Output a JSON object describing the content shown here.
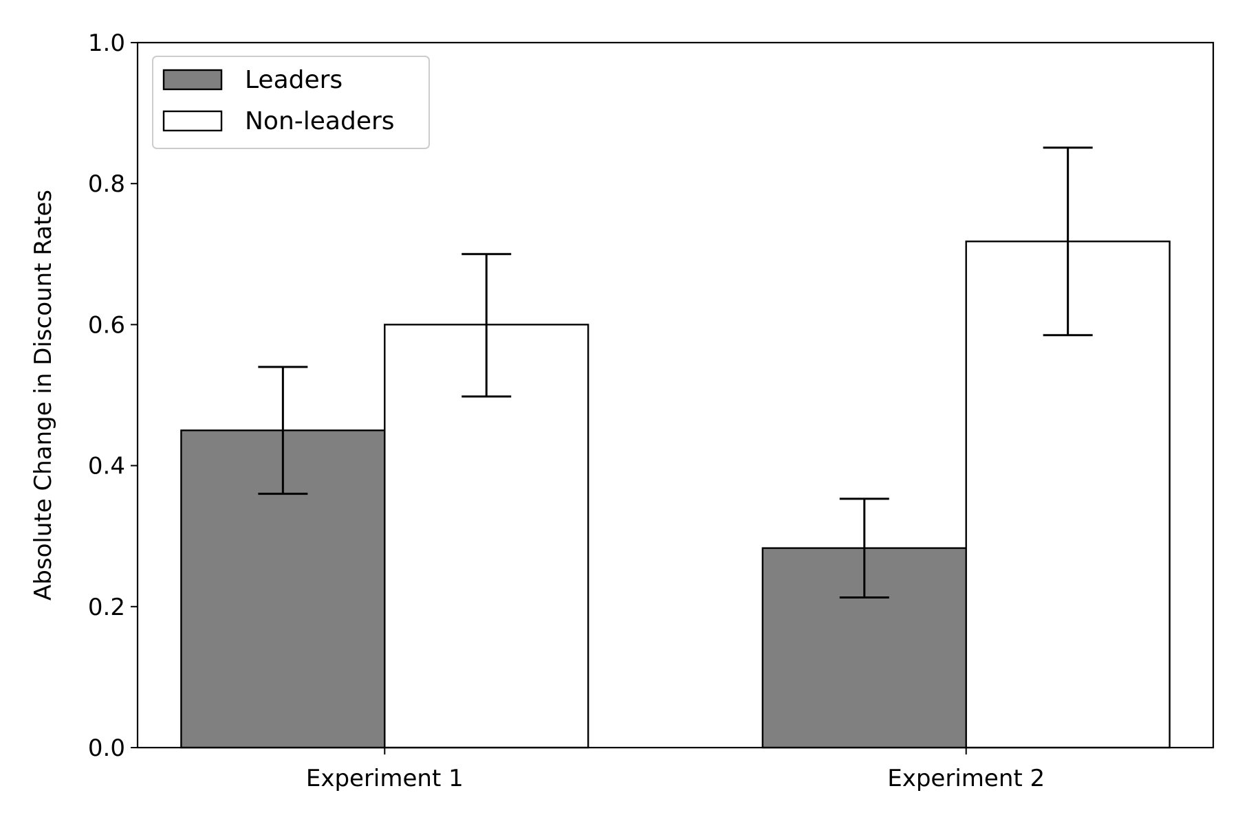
{
  "chart_data": {
    "type": "bar",
    "title": "",
    "xlabel": "",
    "ylabel": "Absolute Change in Discount Rates",
    "categories": [
      "Experiment 1",
      "Experiment 2"
    ],
    "ylim": [
      0.0,
      1.0
    ],
    "yticks": [
      "0.0",
      "0.2",
      "0.4",
      "0.6",
      "0.8",
      "1.0"
    ],
    "series": [
      {
        "name": "Leaders",
        "color": "#808080",
        "values": [
          0.45,
          0.283
        ],
        "error_low": [
          0.36,
          0.213
        ],
        "error_high": [
          0.54,
          0.353
        ]
      },
      {
        "name": "Non-leaders",
        "color": "#ffffff",
        "values": [
          0.6,
          0.718
        ],
        "error_low": [
          0.498,
          0.585
        ],
        "error_high": [
          0.7,
          0.851
        ]
      }
    ],
    "grid": false,
    "legend_position": "top-left"
  }
}
